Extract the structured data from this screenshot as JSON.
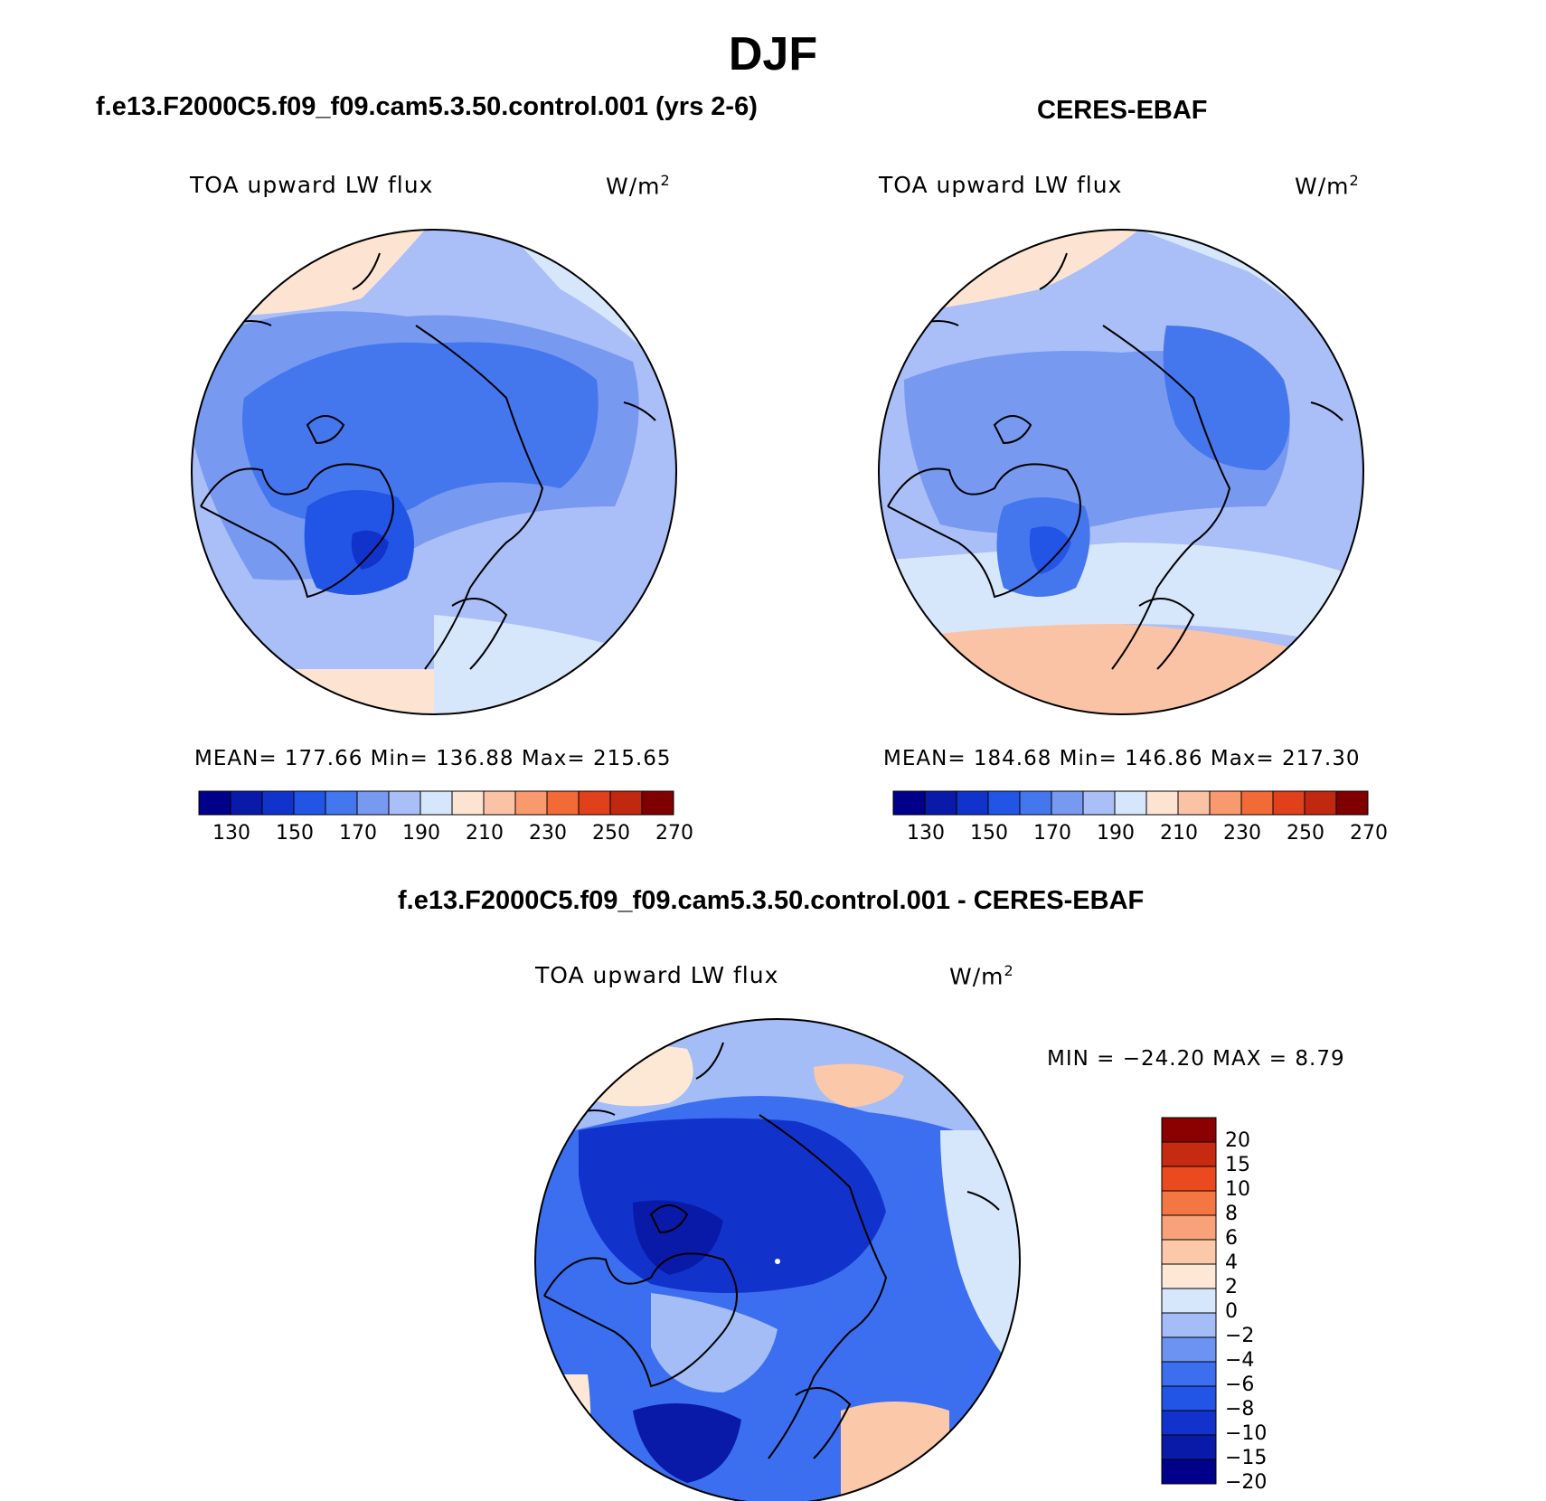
{
  "title": "DJF",
  "top_left": {
    "case_title": "f.e13.F2000C5.f09_f09.cam5.3.50.control.001 (yrs 2-6)",
    "variable": "TOA upward LW flux",
    "units": "W/m",
    "units_sup": "2",
    "stats": "MEAN= 177.66   Min= 136.88   Max= 215.65",
    "colorbar_ticks": [
      "130",
      "150",
      "170",
      "190",
      "210",
      "230",
      "250",
      "270"
    ]
  },
  "top_right": {
    "case_title": "CERES-EBAF",
    "variable": "TOA upward LW flux",
    "units": "W/m",
    "units_sup": "2",
    "stats": "MEAN= 184.68   Min= 146.86   Max= 217.30",
    "colorbar_ticks": [
      "130",
      "150",
      "170",
      "190",
      "210",
      "230",
      "250",
      "270"
    ]
  },
  "bottom": {
    "case_title": "f.e13.F2000C5.f09_f09.cam5.3.50.control.001 - CERES-EBAF",
    "variable": "TOA upward LW flux",
    "units": "W/m",
    "units_sup": "2",
    "minmax": "MIN = −24.20 MAX =    8.79",
    "colorbar_ticks": [
      "20",
      "15",
      "10",
      "8",
      "6",
      "4",
      "2",
      "0",
      "−2",
      "−4",
      "−6",
      "−8",
      "−10",
      "−15",
      "−20"
    ]
  },
  "colors": {
    "abs_palette": [
      "#00008b",
      "#0a1aa8",
      "#1133cc",
      "#2255e6",
      "#4477ee",
      "#7799f0",
      "#aabef7",
      "#d6e6fb",
      "#fde4d2",
      "#fbc3a5",
      "#f99a6e",
      "#f26a36",
      "#e0401a",
      "#c02810",
      "#800000"
    ],
    "diff_palette": [
      "#00008b",
      "#0a1aa8",
      "#1133cc",
      "#2255e6",
      "#3b6ff0",
      "#6d93f2",
      "#a4bdf7",
      "#d6e6fb",
      "#fde8d6",
      "#fbc9aa",
      "#f9a27a",
      "#f47743",
      "#ea4a1e",
      "#c62a10",
      "#8b0000"
    ]
  }
}
